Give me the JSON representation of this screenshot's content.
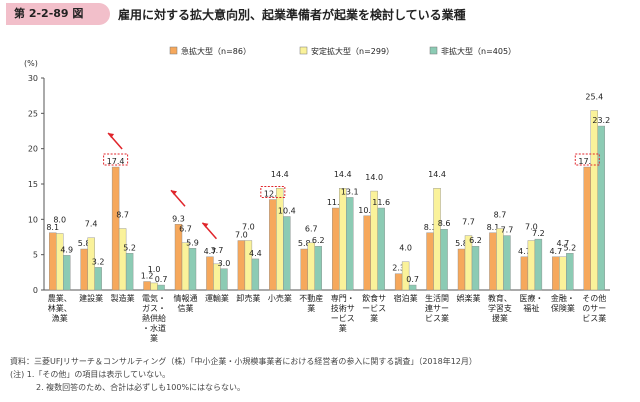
{
  "header": {
    "badge": "第 2-2-89 図",
    "title": "雇用に対する拡大意向別、起業準備者が起業を検討している業種"
  },
  "notes": {
    "source": "資料：三菱UFJリサーチ＆コンサルティング（株）「中小企業・小規模事業者における経営者の参入に関する調査」（2018年12月）",
    "note1": "(注) 1.「その他」の項目は表示していない。",
    "note2": "2. 複数回答のため、合計は必ずしも100%にはならない。"
  },
  "colors": {
    "s1": "#f6a85c",
    "s2": "#faf29a",
    "s3": "#8ccbb4",
    "accent": "#e0252b"
  },
  "chart_data": {
    "type": "bar",
    "ylabel": "(%)",
    "ylim": [
      0,
      30
    ],
    "yticks": [
      0,
      5,
      10,
      15,
      20,
      25,
      30
    ],
    "grid": false,
    "legend_position": "top",
    "categories": [
      [
        "農業、",
        "林業、",
        "漁業"
      ],
      [
        "建設業"
      ],
      [
        "製造業"
      ],
      [
        "電気・",
        "ガス・",
        "熱供給",
        "・水道",
        "業"
      ],
      [
        "情報通",
        "信業"
      ],
      [
        "運輸業"
      ],
      [
        "卸売業"
      ],
      [
        "小売業"
      ],
      [
        "不動産",
        "業"
      ],
      [
        "専門・",
        "技術サ",
        "ービス",
        "業"
      ],
      [
        "飲食サ",
        "ービス",
        "業"
      ],
      [
        "宿泊業"
      ],
      [
        "生活関",
        "連サー",
        "ビス業"
      ],
      [
        "娯楽業"
      ],
      [
        "教育、",
        "学習支",
        "援業"
      ],
      [
        "医療・",
        "福祉"
      ],
      [
        "金融・",
        "保険業"
      ],
      [
        "その他",
        "のサー",
        "ビス業"
      ]
    ],
    "series": [
      {
        "name": "急拡大型（n=86）",
        "values": [
          8.1,
          5.8,
          17.4,
          1.2,
          9.3,
          4.7,
          7.0,
          12.8,
          5.8,
          11.6,
          10.5,
          2.3,
          8.1,
          5.8,
          8.1,
          4.7,
          4.7,
          17.4
        ]
      },
      {
        "name": "安定拡大型（n=299）",
        "values": [
          8.0,
          7.4,
          8.7,
          1.0,
          6.7,
          3.7,
          7.0,
          14.4,
          6.7,
          14.4,
          14.0,
          4.0,
          14.4,
          7.7,
          8.7,
          7.0,
          4.7,
          25.4
        ]
      },
      {
        "name": "非拡大型（n=405）",
        "values": [
          4.9,
          3.2,
          5.2,
          0.7,
          5.9,
          3.0,
          4.4,
          10.4,
          6.2,
          13.1,
          11.6,
          0.7,
          8.6,
          6.2,
          7.7,
          7.2,
          5.2,
          23.2
        ]
      }
    ],
    "highlighted_values": [
      {
        "category_index": 2,
        "series_index": 0
      },
      {
        "category_index": 7,
        "series_index": 0
      },
      {
        "category_index": 17,
        "series_index": 0
      }
    ],
    "up_arrows_at_categories": [
      2,
      4,
      5
    ]
  }
}
